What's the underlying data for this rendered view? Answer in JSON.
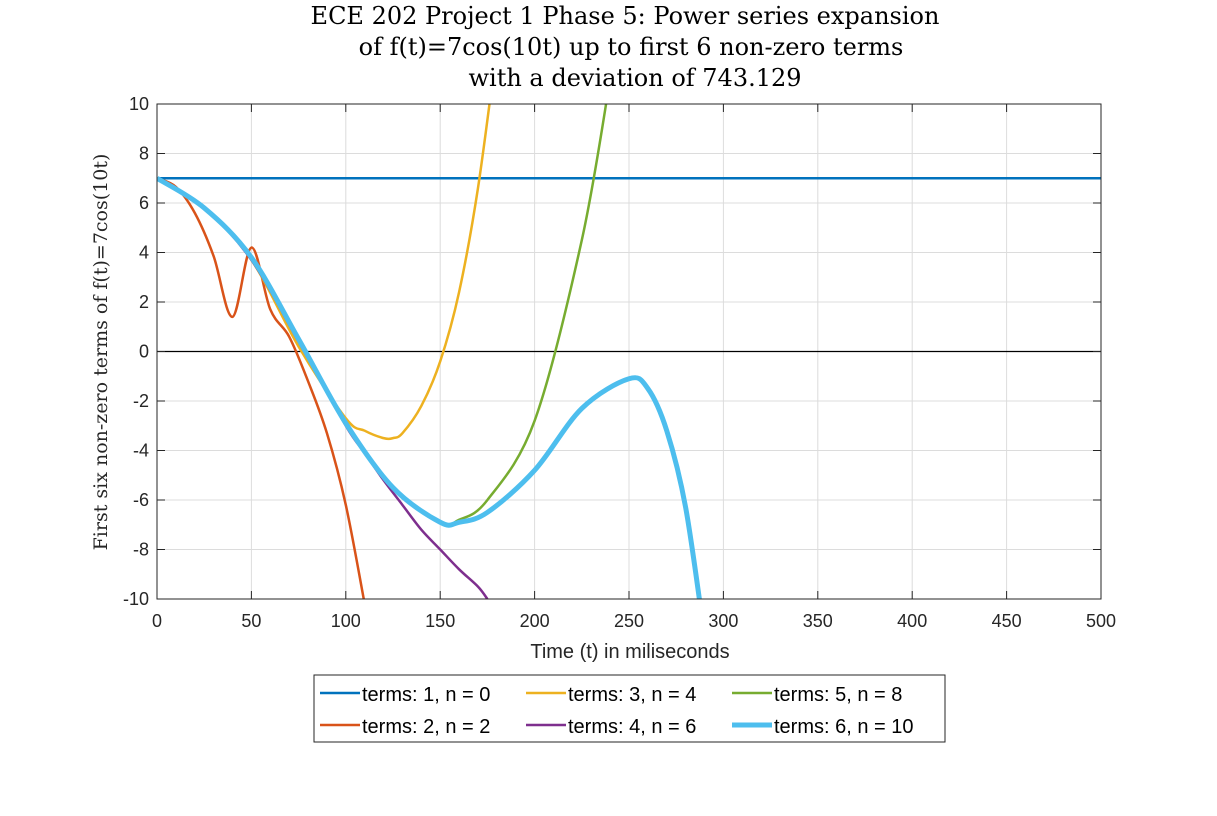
{
  "chart_data": {
    "type": "line",
    "title": [
      "ECE 202 Project 1 Phase 5: Power series expansion",
      "of f(t)=7cos(10t) up to first 6 non-zero terms",
      "with a deviation of 743.129"
    ],
    "xlabel": "Time (t) in miliseconds",
    "ylabel": "First six non-zero terms of f(t)=7cos(10t)",
    "xlim": [
      0,
      500
    ],
    "ylim": [
      -10,
      10
    ],
    "xticks": [
      0,
      50,
      100,
      150,
      200,
      250,
      300,
      350,
      400,
      450,
      500
    ],
    "yticks": [
      -10,
      -8,
      -6,
      -4,
      -2,
      0,
      2,
      4,
      6,
      8,
      10
    ],
    "grid": true,
    "zero_line": 0,
    "legend_position": "bottom-outside",
    "series": [
      {
        "name": "terms: 1, n = 0",
        "color": "#0072BD",
        "lineWidth": 2.5,
        "x": [
          0,
          50,
          100,
          150,
          200,
          250,
          300,
          350,
          400,
          450,
          500
        ],
        "y": [
          7,
          7,
          7,
          7,
          7,
          7,
          7,
          7,
          7,
          7,
          7
        ]
      },
      {
        "name": "terms: 2, n = 2",
        "color": "#D95319",
        "lineWidth": 2.5,
        "x": [
          0,
          10,
          20,
          30,
          40,
          50,
          60,
          70,
          80,
          90,
          100,
          110
        ],
        "y": [
          7,
          6.65,
          5.6,
          3.85,
          1.4,
          4.2,
          1.7,
          0.6,
          -1.2,
          -3.3,
          -6.2,
          -10.2
        ]
      },
      {
        "name": "terms: 3, n = 4",
        "color": "#EDB120",
        "lineWidth": 2.5,
        "x": [
          0,
          25,
          50,
          75,
          100,
          110,
          120,
          125,
          130,
          140,
          150,
          160,
          170,
          180
        ],
        "y": [
          7,
          5.8,
          3.7,
          0.2,
          -2.7,
          -3.2,
          -3.5,
          -3.5,
          -3.3,
          -2.2,
          -0.4,
          2.4,
          6.6,
          12.3
        ]
      },
      {
        "name": "terms: 4, n = 6",
        "color": "#7E2F8E",
        "lineWidth": 2.5,
        "x": [
          0,
          25,
          50,
          75,
          100,
          110,
          120,
          130,
          140,
          150,
          160,
          170,
          175
        ],
        "y": [
          7,
          5.8,
          3.7,
          0.4,
          -3.0,
          -4.1,
          -5.2,
          -6.2,
          -7.2,
          -8.0,
          -8.8,
          -9.5,
          -10.0
        ]
      },
      {
        "name": "terms: 5, n = 8",
        "color": "#77AC30",
        "lineWidth": 2.5,
        "x": [
          0,
          25,
          50,
          75,
          100,
          125,
          150,
          160,
          175,
          200,
          225,
          240
        ],
        "y": [
          7,
          5.8,
          3.8,
          0.5,
          -2.9,
          -5.5,
          -6.9,
          -6.8,
          -6.0,
          -2.8,
          4.5,
          11.0
        ]
      },
      {
        "name": "terms: 6, n = 10",
        "color": "#4DBEEE",
        "lineWidth": 5,
        "x": [
          0,
          25,
          50,
          75,
          100,
          125,
          150,
          160,
          175,
          200,
          225,
          250,
          260,
          270,
          280,
          290
        ],
        "y": [
          7,
          5.8,
          3.8,
          0.5,
          -2.9,
          -5.5,
          -6.9,
          -6.9,
          -6.5,
          -4.8,
          -2.3,
          -1.1,
          -1.5,
          -3.2,
          -6.3,
          -11.5
        ]
      }
    ]
  }
}
